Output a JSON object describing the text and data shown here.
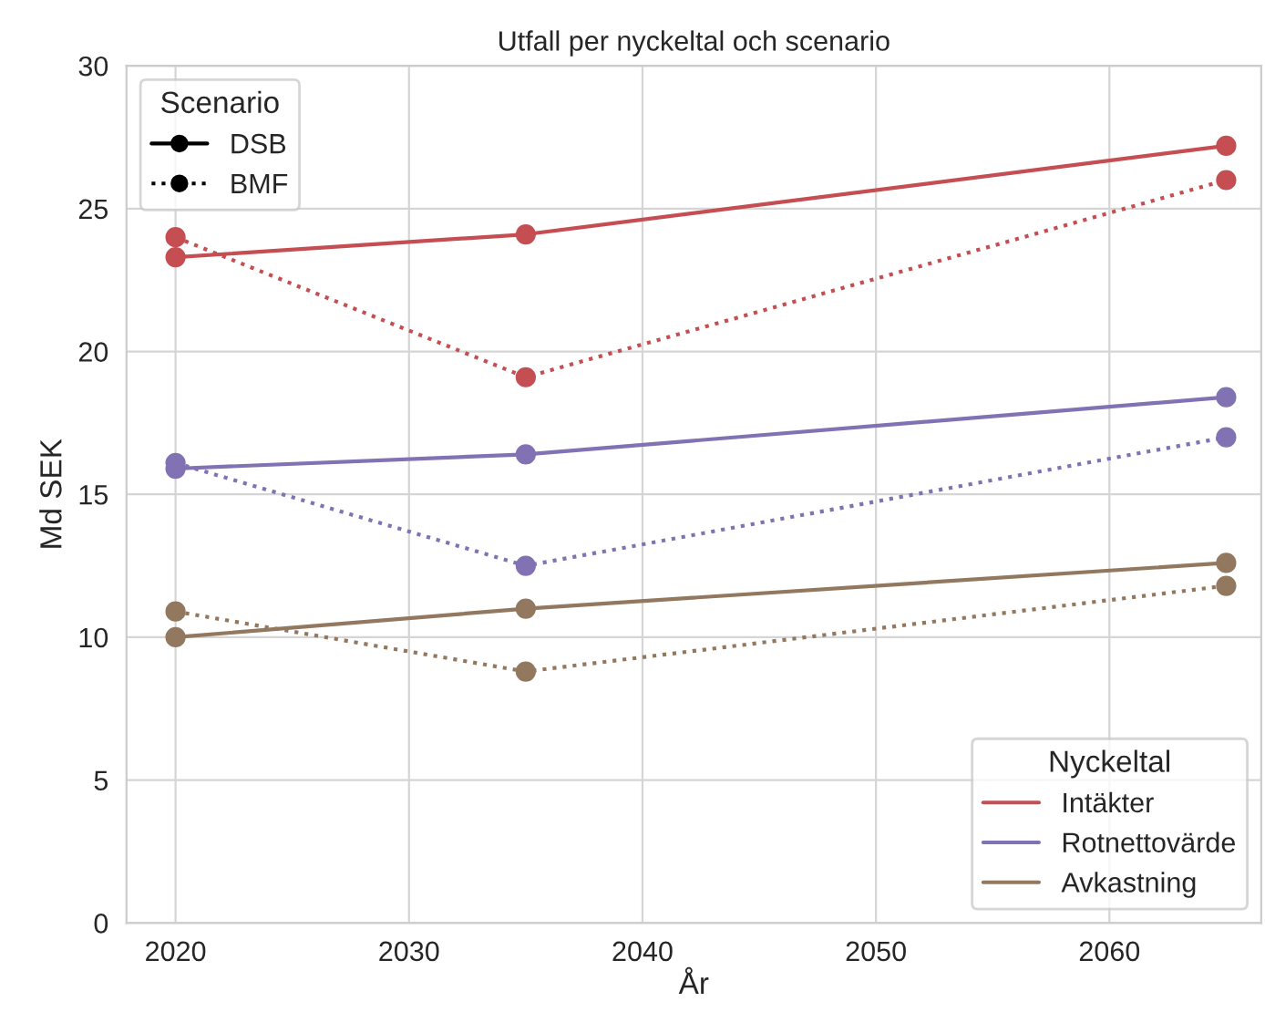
{
  "chart_data": {
    "type": "line",
    "title": "Utfall per nyckeltal och scenario",
    "xlabel": "År",
    "ylabel": "Md SEK",
    "x": [
      2020,
      2035,
      2065
    ],
    "series": [
      {
        "name": "DSB",
        "line_style": "solid",
        "color": "#000000",
        "values": [
          null,
          null,
          null
        ]
      },
      {
        "name": "BMF",
        "line_style": "dotted",
        "color": "#000000",
        "values": [
          null,
          null,
          null
        ]
      },
      {
        "name": "Intäkter",
        "line_style": "solid",
        "color": "#c44e52",
        "values": [
          23.3,
          24.1,
          27.2
        ]
      },
      {
        "line_style": "dotted",
        "color": "#c44e52",
        "values": [
          24.0,
          19.1,
          26.0
        ]
      },
      {
        "name": "Rotnettovärde",
        "line_style": "solid",
        "color": "#8172b3",
        "values": [
          15.9,
          16.4,
          18.4
        ]
      },
      {
        "line_style": "dotted",
        "color": "#8172b3",
        "values": [
          16.1,
          12.5,
          17.0
        ]
      },
      {
        "name": "Avkastning",
        "line_style": "solid",
        "color": "#937860",
        "values": [
          10.0,
          11.0,
          12.6
        ]
      },
      {
        "line_style": "dotted",
        "color": "#937860",
        "values": [
          10.9,
          8.8,
          11.8
        ]
      }
    ],
    "legend_title": [
      "Scenario",
      "Nyckeltal"
    ],
    "legend": [
      "top left",
      "bottom right"
    ],
    "marker": "circle",
    "grid": true,
    "xlim": [
      2017.9,
      2066.5
    ],
    "xticks": [
      2020,
      2030,
      2040,
      2050,
      2060
    ],
    "ylim": [
      0,
      30
    ],
    "yticks": [
      0,
      5,
      10,
      15,
      20,
      25,
      30
    ]
  }
}
